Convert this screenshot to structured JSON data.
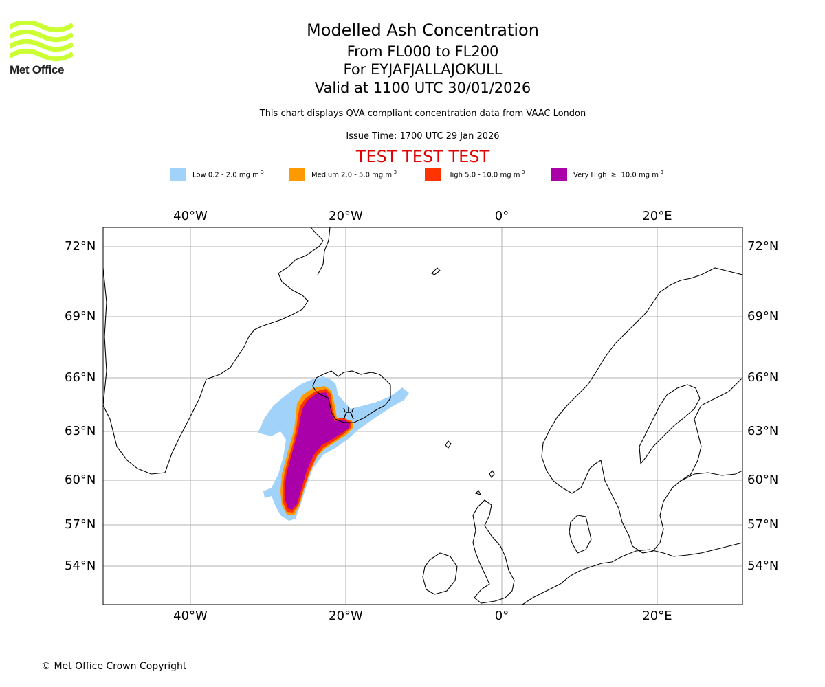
{
  "logo": {
    "text": "Met Office",
    "color": "#ccff33"
  },
  "header": {
    "title": "Modelled Ash Concentration",
    "levels": "From FL000 to FL200",
    "volcano": "For EYJAFJALLAJOKULL",
    "valid": "Valid at 1100 UTC 30/01/2026",
    "subtitle": "This chart displays QVA compliant concentration data from VAAC London",
    "issue_time": "Issue Time: 1700 UTC 29 Jan 2026",
    "test_banner": "TEST TEST TEST"
  },
  "legend": [
    {
      "label": "Low 0.2 - 2.0 mg m",
      "exp": "-3",
      "color": "#a0d2fa"
    },
    {
      "label": "Medium 2.0 - 5.0 mg m",
      "exp": "-3",
      "color": "#ff9900"
    },
    {
      "label": "High 5.0 - 10.0 mg m",
      "exp": "-3",
      "color": "#ff3300"
    },
    {
      "label": "Very High  ≥  10.0 mg m",
      "exp": "-3",
      "color": "#aa00aa"
    }
  ],
  "map": {
    "lon_labels": [
      "40°W",
      "20°W",
      "0°",
      "20°E"
    ],
    "lat_labels": [
      "72°N",
      "69°N",
      "66°N",
      "63°N",
      "60°N",
      "57°N",
      "54°N"
    ],
    "volcano_marker": "EYJAFJALLAJOKULL"
  },
  "footer": {
    "copyright": "© Met Office Crown Copyright"
  }
}
